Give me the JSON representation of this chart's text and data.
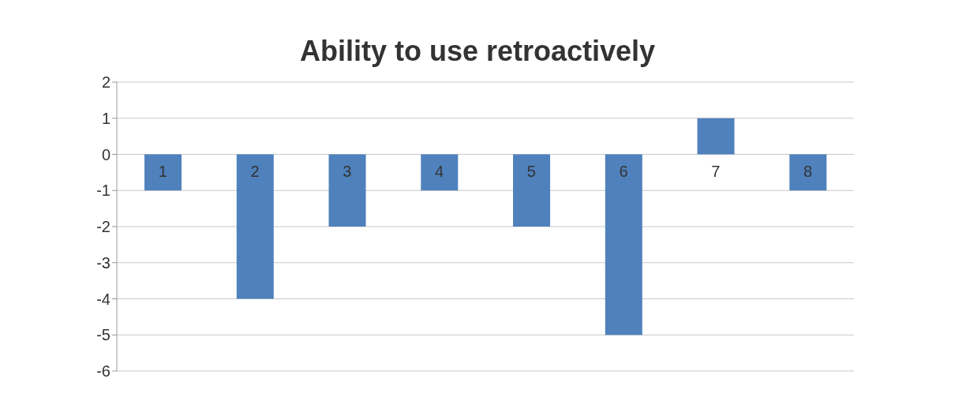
{
  "chart_data": {
    "type": "bar",
    "title": "Ability to use retroactively",
    "categories": [
      "1",
      "2",
      "3",
      "4",
      "5",
      "6",
      "7",
      "8"
    ],
    "values": [
      -1,
      -4,
      -2,
      -1,
      -2,
      -5,
      1,
      -1
    ],
    "color": "#4f81bd",
    "ylim": [
      -6,
      2
    ],
    "yticks": [
      -6,
      -5,
      -4,
      -3,
      -2,
      -1,
      0,
      1,
      2
    ],
    "grid": "y"
  }
}
